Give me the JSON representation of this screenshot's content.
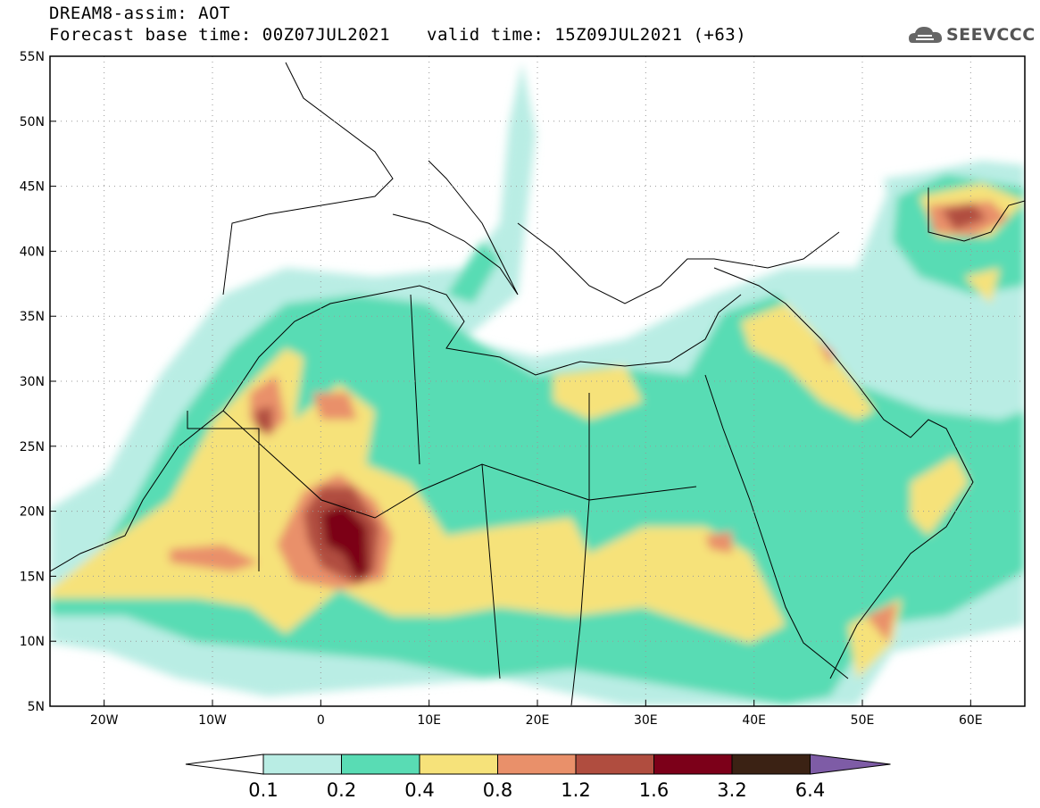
{
  "header": {
    "product": "DREAM8-assim: AOT",
    "base_time": "Forecast base time: 00Z07JUL2021",
    "valid_time": "valid time: 15Z09JUL2021 (+63)"
  },
  "logo": {
    "text": "SEEVCCC",
    "icon": "cloud-icon"
  },
  "map": {
    "lon_range": [
      -25,
      65
    ],
    "lat_range": [
      5,
      55
    ],
    "lat_ticks": [
      "55N",
      "50N",
      "45N",
      "40N",
      "35N",
      "30N",
      "25N",
      "20N",
      "15N",
      "10N",
      "5N"
    ],
    "lon_ticks": [
      "20W",
      "10W",
      "0",
      "10E",
      "20E",
      "30E",
      "40E",
      "50E",
      "60E"
    ],
    "grid": "dotted"
  },
  "colorbar": {
    "levels": [
      "0.1",
      "0.2",
      "0.4",
      "0.8",
      "1.2",
      "1.6",
      "3.2",
      "6.4"
    ],
    "colors": [
      "#ffffff",
      "#b9ede4",
      "#59dcb4",
      "#f6e27a",
      "#e9906a",
      "#b04d3f",
      "#7c0019",
      "#3b2214",
      "#7e5ca6"
    ]
  }
}
